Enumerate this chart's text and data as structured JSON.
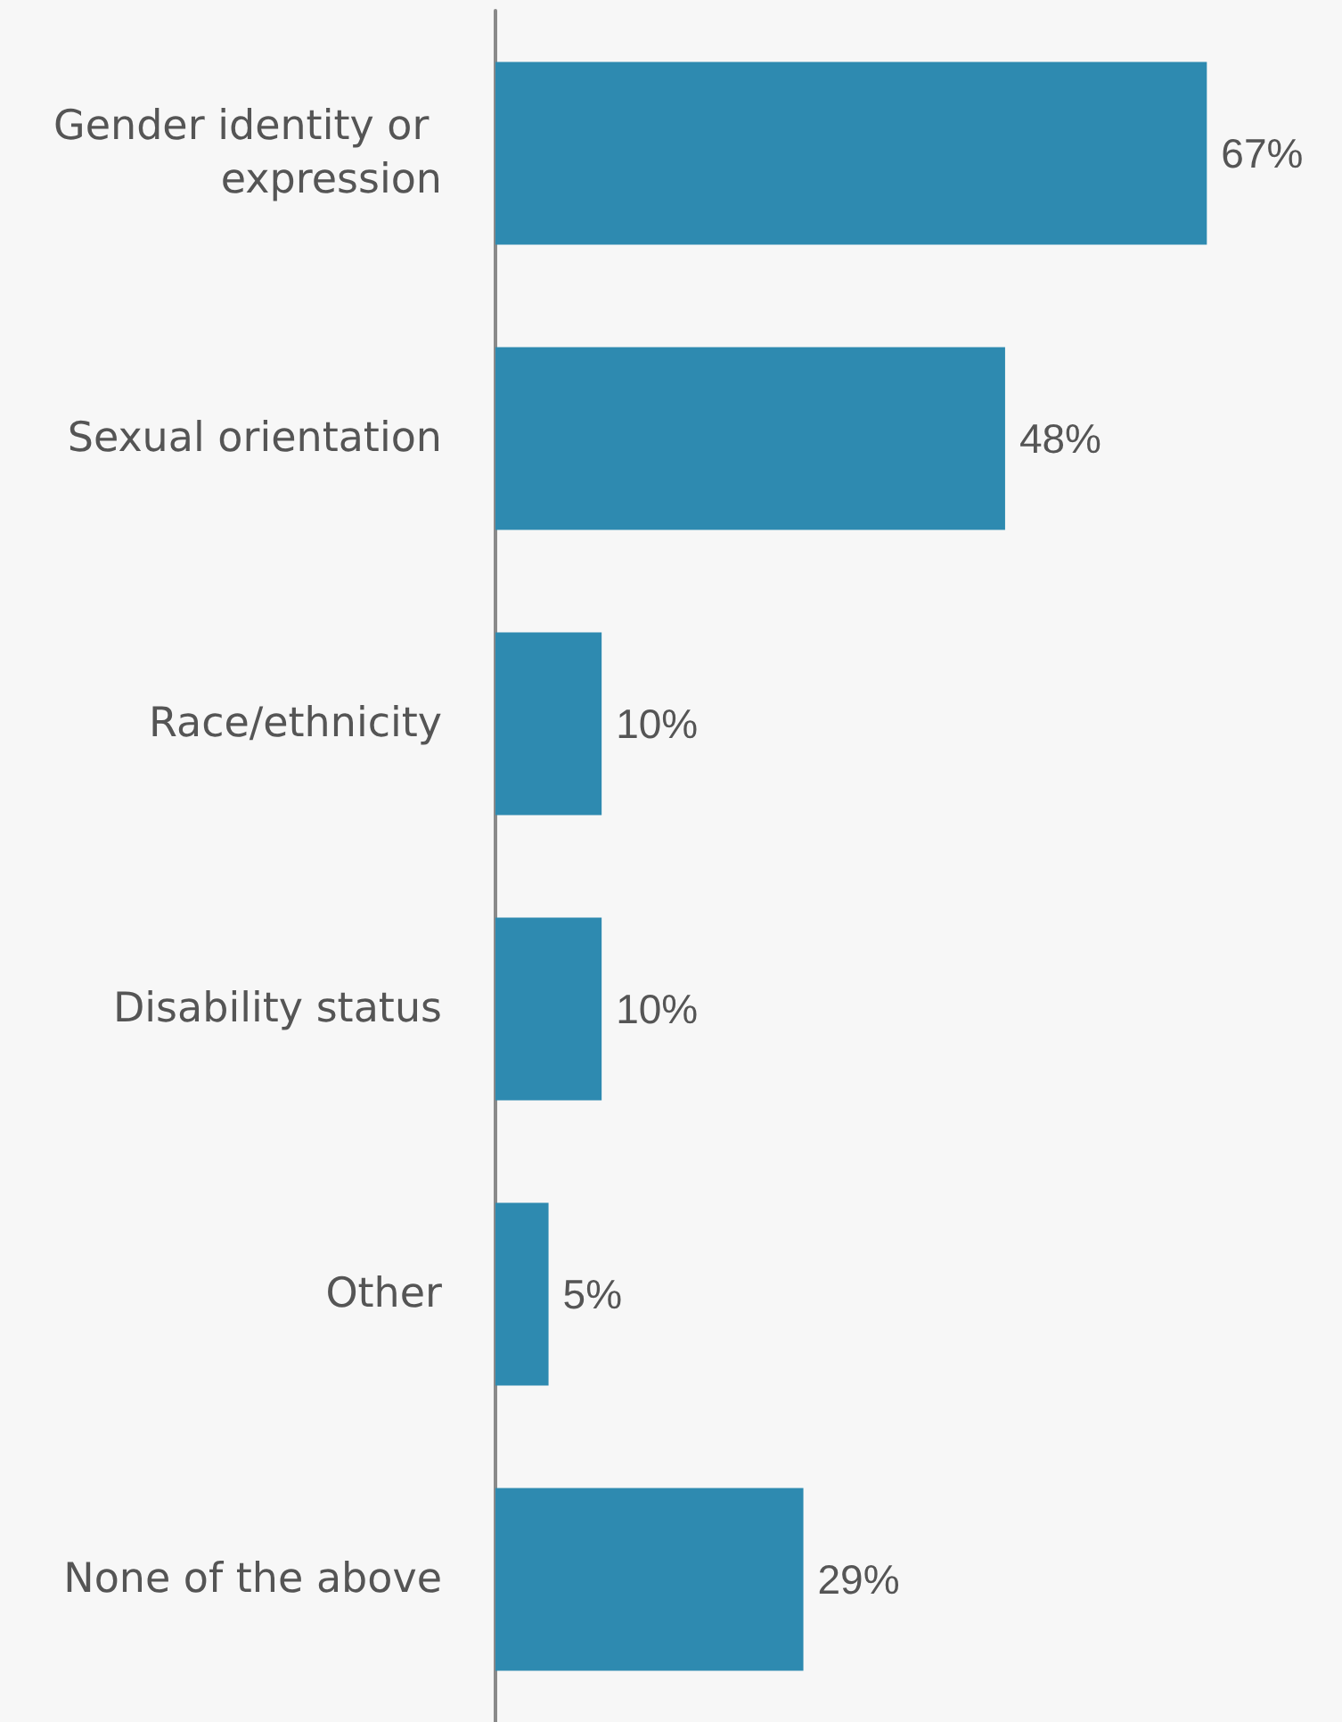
{
  "chart_data": {
    "type": "bar",
    "orientation": "horizontal",
    "categories": [
      "Gender identity or expression",
      "Sexual orientation",
      "Race/ethnicity",
      "Disability status",
      "Other",
      "None of the above"
    ],
    "values": [
      67,
      48,
      10,
      10,
      5,
      29
    ],
    "color": "#2e8ab0",
    "value_labels": [
      "67%",
      "48%",
      "10%",
      "10%",
      "5%",
      "29%"
    ]
  }
}
